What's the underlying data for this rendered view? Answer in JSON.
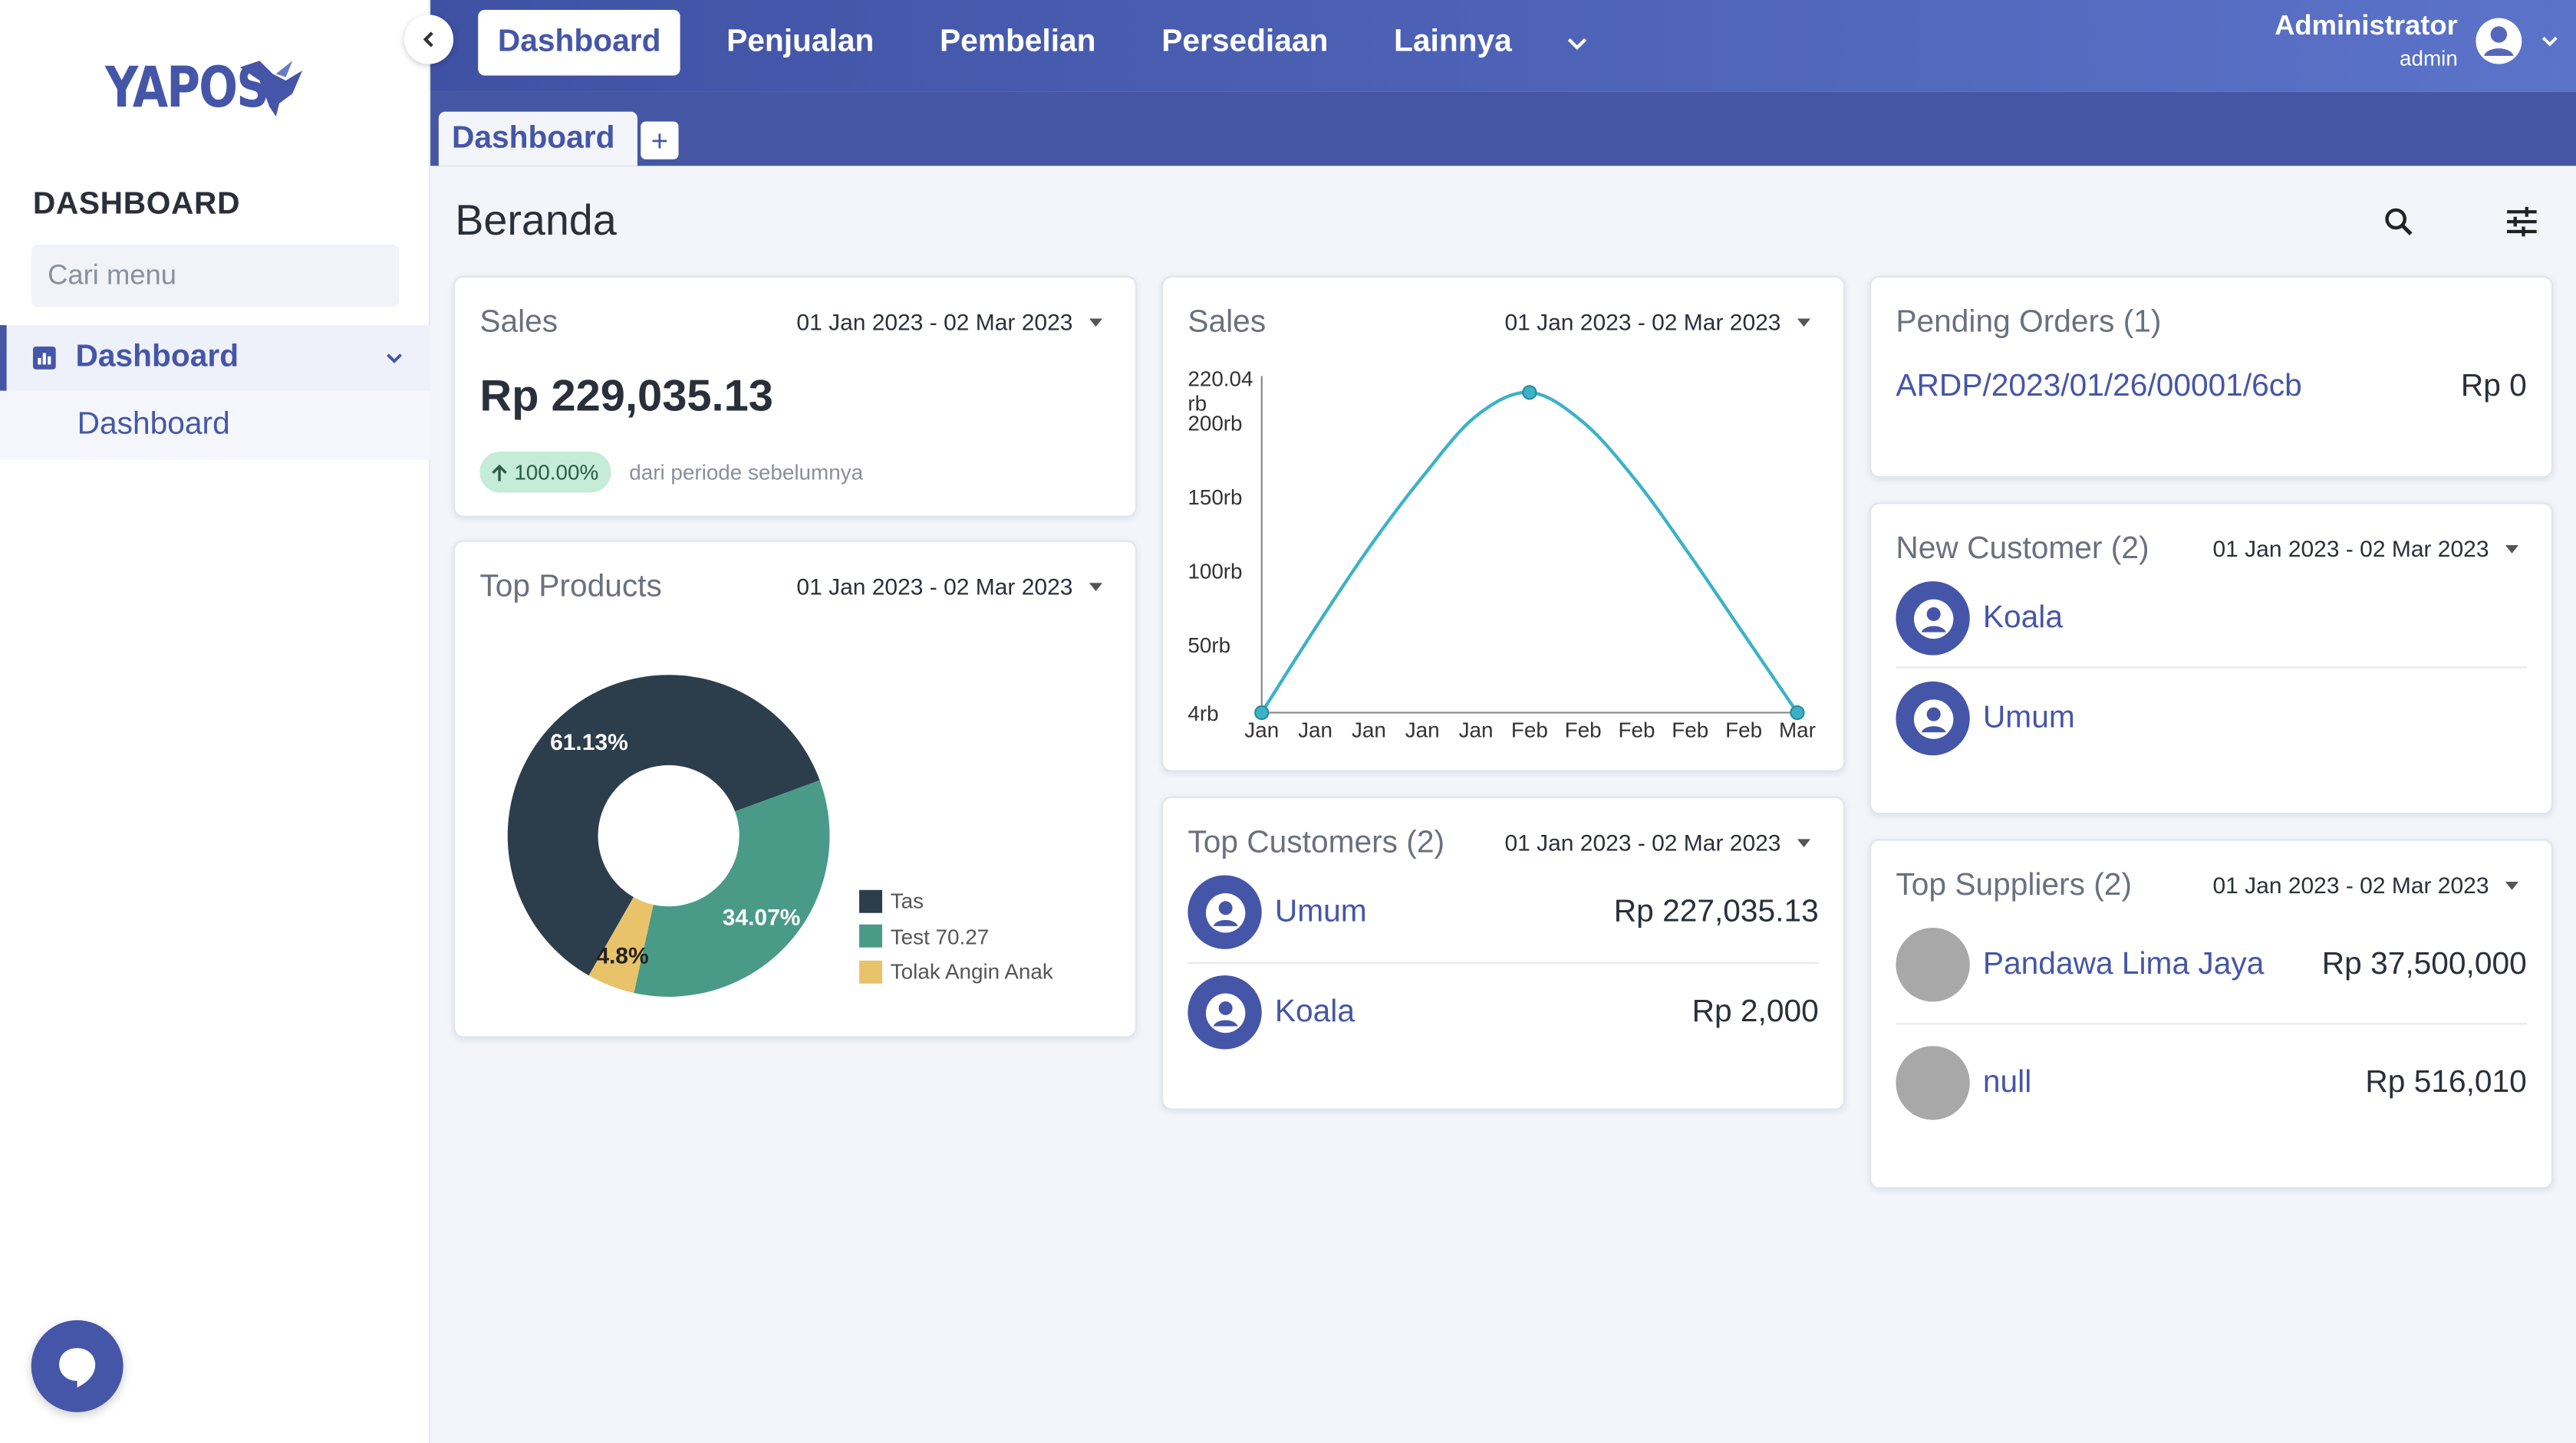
{
  "app": {
    "brand": "YAPOS"
  },
  "sidebar": {
    "heading": "DASHBOARD",
    "search_placeholder": "Cari menu",
    "menu": [
      {
        "label": "Dashboard",
        "sub": [
          {
            "label": "Dashboard"
          }
        ]
      }
    ]
  },
  "topnav": {
    "items": [
      "Dashboard",
      "Penjualan",
      "Pembelian",
      "Persediaan",
      "Lainnya"
    ],
    "active": "Dashboard"
  },
  "user": {
    "name": "Administrator",
    "role": "admin"
  },
  "tabs": [
    {
      "label": "Dashboard"
    }
  ],
  "page": {
    "title": "Beranda"
  },
  "date_range": "01 Jan 2023 - 02 Mar 2023",
  "sales_summary": {
    "title": "Sales",
    "value": "Rp 229,035.13",
    "change": "100.00%",
    "change_note": "dari periode sebelumnya",
    "date_range": "01 Jan 2023 - 02 Mar 2023"
  },
  "top_products": {
    "title": "Top Products",
    "date_range": "01 Jan 2023 - 02 Mar 2023",
    "chart_data": {
      "type": "pie",
      "labels": [
        "Tas",
        "Test 70.27",
        "Tolak Angin Anak"
      ],
      "values": [
        61.13,
        34.07,
        4.8
      ],
      "value_labels": [
        "61.13%",
        "34.07%",
        "4.8%"
      ],
      "colors": [
        "#2c3e4c",
        "#4a9a88",
        "#e8c36a"
      ],
      "legend": "right",
      "donut": true
    }
  },
  "sales_chart": {
    "title": "Sales",
    "date_range": "01 Jan 2023 - 02 Mar 2023",
    "chart_data": {
      "type": "line",
      "x": [
        "Jan",
        "Jan",
        "Jan",
        "Jan",
        "Jan",
        "Feb",
        "Feb",
        "Feb",
        "Feb",
        "Feb",
        "Mar"
      ],
      "series": [
        {
          "values": [
            4000,
            61000,
            115000,
            163000,
            204000,
            220040,
            200000,
            160000,
            110000,
            57000,
            4000
          ],
          "color": "#3bb2c8",
          "marker_indices": [
            0,
            5,
            10
          ]
        }
      ],
      "y_ticks": [
        4000,
        50000,
        100000,
        150000,
        200000,
        220040
      ],
      "y_tick_labels": [
        "4rb",
        "50rb",
        "100rb",
        "150rb",
        "200rb",
        "220.04 rb"
      ],
      "ylim": [
        4000,
        220040
      ],
      "grid": false,
      "xlabel": "",
      "ylabel": ""
    }
  },
  "pending_orders": {
    "title": "Pending Orders (1)",
    "items": [
      {
        "code": "ARDP/2023/01/26/00001/6cb",
        "amount": "Rp 0"
      }
    ]
  },
  "new_customers": {
    "title": "New Customer (2)",
    "date_range": "01 Jan 2023 - 02 Mar 2023",
    "items": [
      {
        "name": "Koala"
      },
      {
        "name": "Umum"
      }
    ]
  },
  "top_customers": {
    "title": "Top Customers (2)",
    "date_range": "01 Jan 2023 - 02 Mar 2023",
    "items": [
      {
        "name": "Umum",
        "amount": "Rp 227,035.13"
      },
      {
        "name": "Koala",
        "amount": "Rp 2,000"
      }
    ]
  },
  "top_suppliers": {
    "title": "Top Suppliers (2)",
    "date_range": "01 Jan 2023 - 02 Mar 2023",
    "items": [
      {
        "name": "Pandawa Lima Jaya",
        "amount": "Rp 37,500,000"
      },
      {
        "name": "null",
        "amount": "Rp 516,010"
      }
    ]
  },
  "icons": {
    "search": "search-icon",
    "filter": "sliders-icon",
    "chat": "chat-icon",
    "user": "user-circle-icon"
  }
}
